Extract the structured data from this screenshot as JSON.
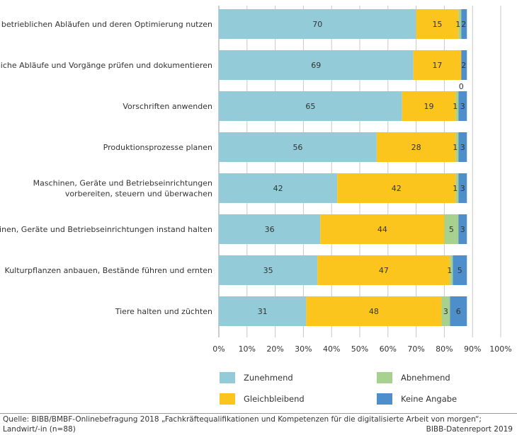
{
  "chart_data": {
    "type": "bar",
    "orientation": "horizontal",
    "stacked": true,
    "categories": [
      [
        "Daten zu betrieblichen Abläufen und deren Optimierung nutzen"
      ],
      [
        "Betriebliche Abläufe und Vorgänge prüfen und dokumentieren"
      ],
      [
        "Vorschriften anwenden"
      ],
      [
        "Produktionsprozesse planen"
      ],
      [
        "Maschinen, Geräte und Betriebseinrichtungen",
        "vorbereiten, steuern und überwachen"
      ],
      [
        "Maschinen, Geräte und Betriebseinrichtungen instand halten"
      ],
      [
        "Kulturpflanzen anbauen, Bestände führen und ernten"
      ],
      [
        "Tiere halten und züchten"
      ]
    ],
    "series": [
      {
        "name": "Zunehmend",
        "color": "#93ccd8",
        "values": [
          70,
          69,
          65,
          56,
          42,
          36,
          35,
          31
        ]
      },
      {
        "name": "Gleichbleibend",
        "color": "#fbc51d",
        "values": [
          15,
          17,
          19,
          28,
          42,
          44,
          47,
          48
        ]
      },
      {
        "name": "Abnehmend",
        "color": "#a7d18f",
        "values": [
          1,
          0,
          1,
          1,
          1,
          5,
          1,
          3
        ]
      },
      {
        "name": "Keine Angabe",
        "color": "#4e8fcb",
        "values": [
          2,
          2,
          3,
          3,
          3,
          3,
          5,
          6
        ]
      }
    ],
    "xlim": [
      0,
      100
    ],
    "xticks": [
      "0%",
      "10%",
      "20%",
      "30%",
      "40%",
      "50%",
      "60%",
      "70%",
      "80%",
      "90%",
      "100%"
    ],
    "grid": true,
    "legend_position": "bottom"
  },
  "footer": {
    "source_line1": "Quelle: BIBB/BMBF-Onlinebefragung 2018 „Fachkräftequalifikationen und Kompetenzen für die digitalisierte Arbeit von morgen“;",
    "source_line2": "Landwirt/-in (n=88)",
    "credit": "BIBB-Datenreport 2019"
  }
}
